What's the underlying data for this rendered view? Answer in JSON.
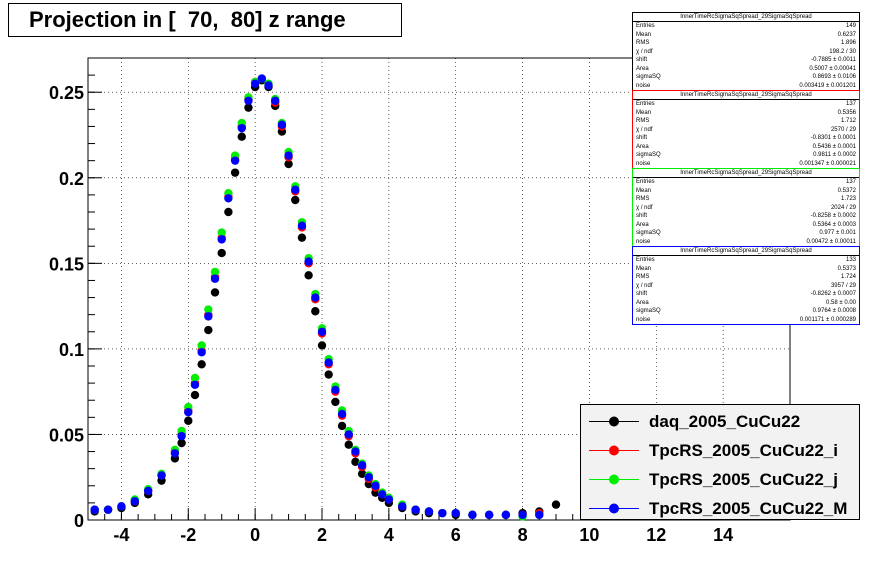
{
  "title": "Projection in [  70,  80] z range",
  "chart_data": {
    "type": "scatter",
    "xlim": [
      -5,
      16
    ],
    "ylim": [
      0,
      0.27
    ],
    "x_ticks": [
      -4,
      -2,
      0,
      2,
      4,
      6,
      8,
      10,
      12,
      14
    ],
    "x_tick_labels": [
      "-4",
      "-2",
      "0",
      "2",
      "4",
      "6",
      "8",
      "10",
      "12",
      "14"
    ],
    "y_ticks": [
      0,
      0.05,
      0.1,
      0.15,
      0.2,
      0.25
    ],
    "y_tick_labels": [
      "0",
      "0.05",
      "0.1",
      "0.15",
      "0.2",
      "0.25"
    ],
    "grid": true,
    "legend_position": "bottom-right",
    "series": [
      {
        "name": "daq_2005_CuCu22",
        "color": "#000000",
        "x": [
          -4.8,
          -4.4,
          -4.0,
          -3.6,
          -3.2,
          -2.8,
          -2.4,
          -2.2,
          -2.0,
          -1.8,
          -1.6,
          -1.4,
          -1.2,
          -1.0,
          -0.8,
          -0.6,
          -0.4,
          -0.2,
          0.0,
          0.2,
          0.4,
          0.6,
          0.8,
          1.0,
          1.2,
          1.4,
          1.6,
          1.8,
          2.0,
          2.2,
          2.4,
          2.6,
          2.8,
          3.0,
          3.2,
          3.4,
          3.6,
          3.8,
          4.0,
          4.4,
          4.8,
          5.2,
          5.6,
          6.0,
          6.5,
          7.0,
          7.5,
          8.0,
          8.5,
          9.0
        ],
        "y": [
          0.005,
          0.006,
          0.007,
          0.01,
          0.015,
          0.023,
          0.036,
          0.045,
          0.058,
          0.073,
          0.091,
          0.111,
          0.133,
          0.156,
          0.18,
          0.203,
          0.224,
          0.241,
          0.253,
          0.257,
          0.253,
          0.242,
          0.227,
          0.208,
          0.187,
          0.165,
          0.143,
          0.122,
          0.102,
          0.085,
          0.069,
          0.055,
          0.044,
          0.034,
          0.027,
          0.021,
          0.016,
          0.013,
          0.01,
          0.007,
          0.005,
          0.004,
          0.004,
          0.003,
          0.003,
          0.003,
          0.003,
          0.004,
          0.005,
          0.009
        ]
      },
      {
        "name": "TpcRS_2005_CuCu22_i",
        "color": "#ff0000",
        "x": [
          -4.8,
          -4.4,
          -4.0,
          -3.6,
          -3.2,
          -2.8,
          -2.4,
          -2.2,
          -2.0,
          -1.8,
          -1.6,
          -1.4,
          -1.2,
          -1.0,
          -0.8,
          -0.6,
          -0.4,
          -0.2,
          0.0,
          0.2,
          0.4,
          0.6,
          0.8,
          1.0,
          1.2,
          1.4,
          1.6,
          1.8,
          2.0,
          2.2,
          2.4,
          2.6,
          2.8,
          3.0,
          3.2,
          3.4,
          3.6,
          3.8,
          4.0,
          4.4,
          4.8,
          5.2,
          5.6,
          6.0,
          6.5,
          7.0,
          7.5,
          8.0,
          8.5
        ],
        "y": [
          0.006,
          0.006,
          0.008,
          0.011,
          0.017,
          0.026,
          0.04,
          0.05,
          0.064,
          0.08,
          0.099,
          0.12,
          0.142,
          0.165,
          0.189,
          0.211,
          0.23,
          0.246,
          0.256,
          0.258,
          0.254,
          0.244,
          0.23,
          0.212,
          0.192,
          0.171,
          0.15,
          0.129,
          0.109,
          0.091,
          0.075,
          0.061,
          0.049,
          0.039,
          0.031,
          0.024,
          0.019,
          0.015,
          0.012,
          0.008,
          0.006,
          0.005,
          0.004,
          0.004,
          0.003,
          0.003,
          0.003,
          0.003,
          0.004
        ]
      },
      {
        "name": "TpcRS_2005_CuCu22_j",
        "color": "#00ee00",
        "x": [
          -4.8,
          -4.4,
          -4.0,
          -3.6,
          -3.2,
          -2.8,
          -2.4,
          -2.2,
          -2.0,
          -1.8,
          -1.6,
          -1.4,
          -1.2,
          -1.0,
          -0.8,
          -0.6,
          -0.4,
          -0.2,
          0.0,
          0.2,
          0.4,
          0.6,
          0.8,
          1.0,
          1.2,
          1.4,
          1.6,
          1.8,
          2.0,
          2.2,
          2.4,
          2.6,
          2.8,
          3.0,
          3.2,
          3.4,
          3.6,
          3.8,
          4.0,
          4.4,
          4.8,
          5.2,
          5.6,
          6.0,
          6.5,
          7.0,
          7.5,
          8.0,
          8.5
        ],
        "y": [
          0.006,
          0.006,
          0.008,
          0.012,
          0.018,
          0.027,
          0.041,
          0.052,
          0.066,
          0.083,
          0.102,
          0.123,
          0.145,
          0.168,
          0.191,
          0.213,
          0.232,
          0.247,
          0.256,
          0.258,
          0.255,
          0.246,
          0.232,
          0.215,
          0.195,
          0.174,
          0.153,
          0.132,
          0.112,
          0.094,
          0.078,
          0.064,
          0.052,
          0.041,
          0.033,
          0.026,
          0.021,
          0.016,
          0.013,
          0.009,
          0.006,
          0.005,
          0.004,
          0.004,
          0.003,
          0.003,
          0.003,
          0.002,
          0.003
        ]
      },
      {
        "name": "TpcRS_2005_CuCu22_M",
        "color": "#0000ff",
        "x": [
          -4.8,
          -4.4,
          -4.0,
          -3.6,
          -3.2,
          -2.8,
          -2.4,
          -2.2,
          -2.0,
          -1.8,
          -1.6,
          -1.4,
          -1.2,
          -1.0,
          -0.8,
          -0.6,
          -0.4,
          -0.2,
          0.0,
          0.2,
          0.4,
          0.6,
          0.8,
          1.0,
          1.2,
          1.4,
          1.6,
          1.8,
          2.0,
          2.2,
          2.4,
          2.6,
          2.8,
          3.0,
          3.2,
          3.4,
          3.6,
          3.8,
          4.0,
          4.4,
          4.8,
          5.2,
          5.6,
          6.0,
          6.5,
          7.0,
          7.5,
          8.0,
          8.5
        ],
        "y": [
          0.006,
          0.006,
          0.008,
          0.011,
          0.017,
          0.026,
          0.039,
          0.049,
          0.063,
          0.079,
          0.098,
          0.119,
          0.141,
          0.164,
          0.188,
          0.21,
          0.229,
          0.245,
          0.255,
          0.258,
          0.254,
          0.245,
          0.231,
          0.213,
          0.193,
          0.172,
          0.151,
          0.13,
          0.11,
          0.092,
          0.076,
          0.062,
          0.05,
          0.04,
          0.032,
          0.025,
          0.02,
          0.015,
          0.012,
          0.008,
          0.006,
          0.005,
          0.004,
          0.004,
          0.003,
          0.003,
          0.003,
          0.003,
          0.003
        ]
      }
    ]
  },
  "stats_boxes": [
    {
      "title": "InnerTimeRcSigmaSqSpread_29SigmaSqSpread",
      "color": "#000000",
      "rows": [
        [
          "Entries",
          "149"
        ],
        [
          "Mean",
          "0.6237"
        ],
        [
          "RMS",
          "1.896"
        ],
        [
          "χ  / ndf",
          "198.2 / 30"
        ],
        [
          "shift",
          "-0.7885 ± 0.0011"
        ],
        [
          "Area",
          "0.5007 ± 0.00041"
        ],
        [
          "sigmaSQ",
          "0.8693 ± 0.0106"
        ],
        [
          "noise",
          "0.003419 ± 0.001201"
        ]
      ]
    },
    {
      "title": "InnerTimeRcSigmaSqSpread_29SigmaSqSpread",
      "color": "#ff0000",
      "rows": [
        [
          "Entries",
          "137"
        ],
        [
          "Mean",
          "0.5356"
        ],
        [
          "RMS",
          "1.712"
        ],
        [
          "χ  / ndf",
          "2570 / 29"
        ],
        [
          "shift",
          "-0.8301 ± 0.0001"
        ],
        [
          "Area",
          "0.5436 ± 0.0001"
        ],
        [
          "sigmaSQ",
          "0.9811 ± 0.0002"
        ],
        [
          "noise",
          "0.001347 ± 0.000021"
        ]
      ]
    },
    {
      "title": "InnerTimeRcSigmaSqSpread_29SigmaSqSpread",
      "color": "#00ee00",
      "rows": [
        [
          "Entries",
          "137"
        ],
        [
          "Mean",
          "0.5372"
        ],
        [
          "RMS",
          "1.723"
        ],
        [
          "χ  / ndf",
          "2024 / 29"
        ],
        [
          "shift",
          "-0.8258 ± 0.0002"
        ],
        [
          "Area",
          "0.5364 ± 0.0003"
        ],
        [
          "sigmaSQ",
          "0.977 ± 0.001"
        ],
        [
          "noise",
          "0.00472 ± 0.00011"
        ]
      ]
    },
    {
      "title": "InnerTimeRcSigmaSqSpread_29SigmaSqSpread",
      "color": "#0000ff",
      "rows": [
        [
          "Entries",
          "133"
        ],
        [
          "Mean",
          "0.5373"
        ],
        [
          "RMS",
          "1.724"
        ],
        [
          "χ  / ndf",
          "3957 / 29"
        ],
        [
          "shift",
          "-0.8262 ± 0.0007"
        ],
        [
          "Area",
          "0.58 ± 0.00"
        ],
        [
          "sigmaSQ",
          "0.9764 ± 0.0008"
        ],
        [
          "noise",
          "0.001171 ± 0.000289"
        ]
      ]
    }
  ]
}
